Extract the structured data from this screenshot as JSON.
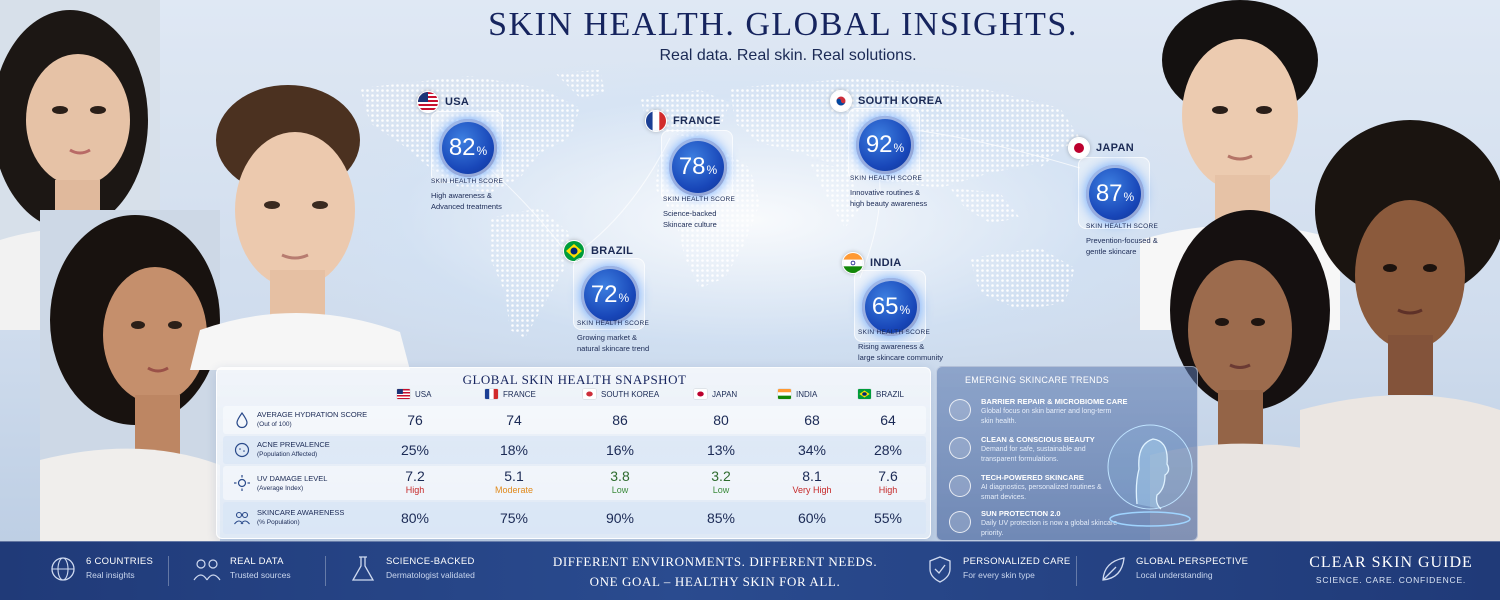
{
  "header": {
    "title": "SKIN HEALTH. GLOBAL INSIGHTS.",
    "subtitle": "Real data. Real skin. Real solutions."
  },
  "map_markers": [
    {
      "country": "USA",
      "score": "82",
      "unit": "%",
      "label": "SKIN HEALTH SCORE",
      "desc_line1": "High awareness &",
      "desc_line2": "Advanced treatments"
    },
    {
      "country": "FRANCE",
      "score": "78",
      "unit": "%",
      "label": "SKIN HEALTH SCORE",
      "desc_line1": "Science-backed",
      "desc_line2": "Skincare culture"
    },
    {
      "country": "SOUTH KOREA",
      "score": "92",
      "unit": "%",
      "label": "SKIN HEALTH SCORE",
      "desc_line1": "Innovative routines &",
      "desc_line2": "high beauty awareness"
    },
    {
      "country": "JAPAN",
      "score": "87",
      "unit": "%",
      "label": "SKIN HEALTH SCORE",
      "desc_line1": "Prevention-focused &",
      "desc_line2": "gentle skincare"
    },
    {
      "country": "BRAZIL",
      "score": "72",
      "unit": "%",
      "label": "SKIN HEALTH SCORE",
      "desc_line1": "Growing market &",
      "desc_line2": "natural skincare trend"
    },
    {
      "country": "INDIA",
      "score": "65",
      "unit": "%",
      "label": "SKIN HEALTH SCORE",
      "desc_line1": "Rising awareness &",
      "desc_line2": "large skincare community"
    }
  ],
  "snapshot": {
    "title": "GLOBAL SKIN HEALTH SNAPSHOT",
    "columns": [
      "USA",
      "FRANCE",
      "SOUTH KOREA",
      "JAPAN",
      "INDIA",
      "BRAZIL"
    ],
    "rows": [
      {
        "label": "AVERAGE HYDRATION SCORE",
        "sub": "(Out of 100)",
        "values": [
          "76",
          "74",
          "86",
          "80",
          "68",
          "64"
        ]
      },
      {
        "label": "ACNE PREVALENCE",
        "sub": "(Population Affected)",
        "values": [
          "25%",
          "18%",
          "16%",
          "13%",
          "34%",
          "28%"
        ]
      },
      {
        "label": "UV DAMAGE LEVEL",
        "sub": "(Average Index)",
        "values": [
          "7.2",
          "5.1",
          "3.8",
          "3.2",
          "8.1",
          "7.6"
        ],
        "levels": [
          "High",
          "Moderate",
          "Low",
          "Low",
          "Very High",
          "High"
        ]
      },
      {
        "label": "SKINCARE AWARENESS",
        "sub": "(% Population)",
        "values": [
          "80%",
          "75%",
          "90%",
          "85%",
          "60%",
          "55%"
        ]
      }
    ],
    "level_colors": {
      "High": "#c62828",
      "Moderate": "#e08a1c",
      "Low": "#3a8a3a",
      "Very High": "#c62828"
    }
  },
  "trends": {
    "title": "EMERGING SKINCARE TRENDS",
    "items": [
      {
        "title": "BARRIER REPAIR & MICROBIOME CARE",
        "desc": "Global focus on skin barrier and long-term skin health.",
        "icon": "shield-icon"
      },
      {
        "title": "CLEAN & CONSCIOUS BEAUTY",
        "desc": "Demand for safe, sustainable and transparent formulations.",
        "icon": "bottle-icon"
      },
      {
        "title": "TECH-POWERED SKINCARE",
        "desc": "AI diagnostics, personalized routines & smart devices.",
        "icon": "device-icon"
      },
      {
        "title": "SUN PROTECTION 2.0",
        "desc": "Daily UV protection is now a global skincare priority.",
        "icon": "sun-icon"
      }
    ]
  },
  "footer": {
    "features": [
      {
        "title": "6 COUNTRIES",
        "sub": "Real insights",
        "icon": "globe-icon"
      },
      {
        "title": "REAL DATA",
        "sub": "Trusted sources",
        "icon": "people-icon"
      },
      {
        "title": "SCIENCE-BACKED",
        "sub": "Dermatologist validated",
        "icon": "flask-icon"
      },
      {
        "title": "PERSONALIZED CARE",
        "sub": "For every skin type",
        "icon": "shield-check-icon"
      },
      {
        "title": "GLOBAL PERSPECTIVE",
        "sub": "Local understanding",
        "icon": "leaf-icon"
      }
    ],
    "tagline_line1": "DIFFERENT ENVIRONMENTS. DIFFERENT NEEDS.",
    "tagline_line2": "ONE GOAL – HEALTHY SKIN FOR ALL.",
    "brand_name": "CLEAR SKIN GUIDE",
    "brand_tag": "SCIENCE. CARE. CONFIDENCE."
  },
  "colors": {
    "navy": "#16245e",
    "accent": "#1846b8",
    "footer": "#203a78"
  }
}
